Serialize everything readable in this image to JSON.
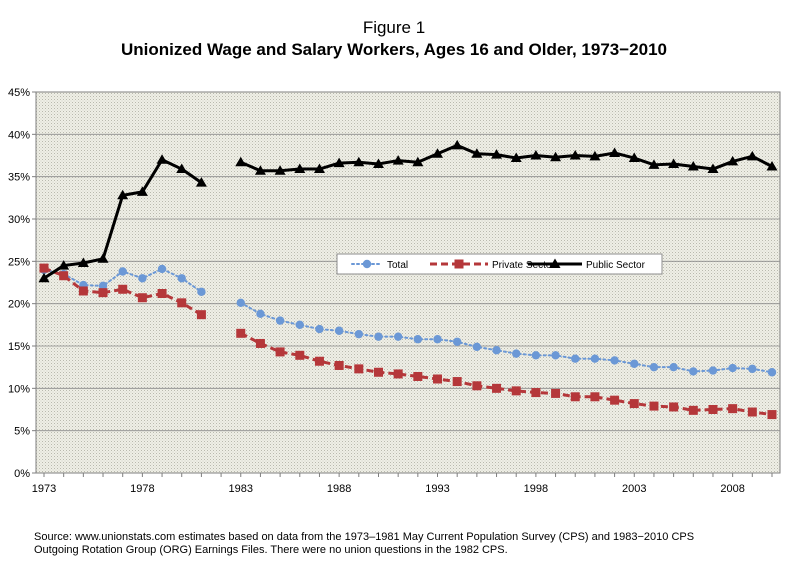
{
  "chart_data": {
    "type": "line",
    "title": "Figure 1",
    "subtitle": "Unionized Wage and Salary Workers, Ages 16 and Older, 1973−2010",
    "xlabel": "",
    "ylabel": "",
    "xlim": [
      1973,
      2010
    ],
    "ylim": [
      0,
      45
    ],
    "x_ticks": [
      1973,
      1978,
      1983,
      1988,
      1993,
      1998,
      2003,
      2008
    ],
    "y_ticks": [
      "0%",
      "5%",
      "10%",
      "15%",
      "20%",
      "25%",
      "30%",
      "35%",
      "40%",
      "45%"
    ],
    "grid": true,
    "legend_position": "center",
    "x": [
      1973,
      1974,
      1975,
      1976,
      1977,
      1978,
      1979,
      1980,
      1981,
      1983,
      1984,
      1985,
      1986,
      1987,
      1988,
      1989,
      1990,
      1991,
      1992,
      1993,
      1994,
      1995,
      1996,
      1997,
      1998,
      1999,
      2000,
      2001,
      2002,
      2003,
      2004,
      2005,
      2006,
      2007,
      2008,
      2009,
      2010
    ],
    "series": [
      {
        "name": "Total",
        "color": "#6b98d6",
        "style": "dotted-circle",
        "values": [
          24.0,
          23.5,
          22.2,
          22.1,
          23.8,
          23.0,
          24.1,
          23.0,
          21.4,
          20.1,
          18.8,
          18.0,
          17.5,
          17.0,
          16.8,
          16.4,
          16.1,
          16.1,
          15.8,
          15.8,
          15.5,
          14.9,
          14.5,
          14.1,
          13.9,
          13.9,
          13.5,
          13.5,
          13.3,
          12.9,
          12.5,
          12.5,
          12.0,
          12.1,
          12.4,
          12.3,
          11.9
        ]
      },
      {
        "name": "Private Sector",
        "color": "#b5373a",
        "style": "dashed-square",
        "values": [
          24.2,
          23.3,
          21.5,
          21.3,
          21.7,
          20.7,
          21.2,
          20.1,
          18.7,
          16.5,
          15.3,
          14.3,
          13.9,
          13.2,
          12.7,
          12.3,
          11.9,
          11.7,
          11.4,
          11.1,
          10.8,
          10.3,
          10.0,
          9.7,
          9.5,
          9.4,
          9.0,
          9.0,
          8.6,
          8.2,
          7.9,
          7.8,
          7.4,
          7.5,
          7.6,
          7.2,
          6.9
        ]
      },
      {
        "name": "Public Sector",
        "color": "#000000",
        "style": "solid-triangle",
        "values": [
          23.0,
          24.5,
          24.8,
          25.3,
          32.8,
          33.2,
          37.0,
          35.9,
          34.3,
          36.7,
          35.7,
          35.7,
          35.9,
          35.9,
          36.6,
          36.7,
          36.5,
          36.9,
          36.7,
          37.7,
          38.7,
          37.7,
          37.6,
          37.2,
          37.5,
          37.3,
          37.5,
          37.4,
          37.8,
          37.2,
          36.4,
          36.5,
          36.2,
          35.9,
          36.8,
          37.4,
          36.2
        ]
      }
    ]
  },
  "source": {
    "line1": "Source: www.unionstats.com estimates based on data from the 1973–1981 May Current Population Survey (CPS) and 1983−2010 CPS",
    "line2": "Outgoing Rotation Group (ORG) Earnings Files.  There were no union questions in the 1982 CPS."
  }
}
